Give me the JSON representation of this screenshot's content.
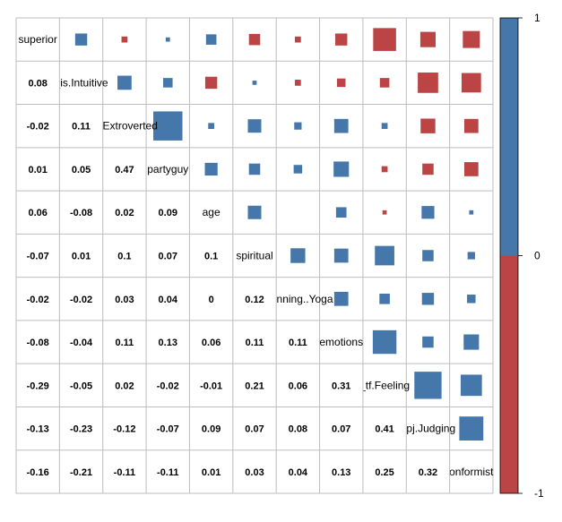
{
  "chart_data": {
    "type": "heatmap",
    "subtype": "correlation-matrix-mixed",
    "variables": [
      "superior",
      "_is.Intuitive",
      "ei.Extroverted",
      "partyguy",
      "age",
      "spiritual",
      "Running..Yoga",
      "emotions",
      "_tf.Feeling",
      "_pj.Judging",
      "onformist"
    ],
    "lower_triangle": [
      [],
      [
        0.08
      ],
      [
        -0.02,
        0.11
      ],
      [
        0.01,
        0.05,
        0.47
      ],
      [
        0.06,
        -0.08,
        0.02,
        0.09
      ],
      [
        -0.07,
        0.01,
        0.1,
        0.07,
        0.1
      ],
      [
        -0.02,
        -0.02,
        0.03,
        0.04,
        0,
        0.12
      ],
      [
        -0.08,
        -0.04,
        0.11,
        0.13,
        0.06,
        0.11,
        0.11
      ],
      [
        -0.29,
        -0.05,
        0.02,
        -0.02,
        -0.01,
        0.21,
        0.06,
        0.31
      ],
      [
        -0.13,
        -0.23,
        -0.12,
        -0.07,
        0.09,
        0.07,
        0.08,
        0.07,
        0.41
      ],
      [
        -0.16,
        -0.21,
        -0.11,
        -0.11,
        0.01,
        0.03,
        0.04,
        0.13,
        0.25,
        0.32
      ]
    ],
    "lower_method": "number",
    "upper_method": "square",
    "colorbar": {
      "ticks": [
        "1",
        "0",
        "-1"
      ],
      "range": [
        -1,
        1
      ]
    },
    "colors": {
      "positive": "#4577AA",
      "negative": "#BB4444",
      "grid": "#BEBEBE"
    },
    "grid": true,
    "legend": "right"
  }
}
